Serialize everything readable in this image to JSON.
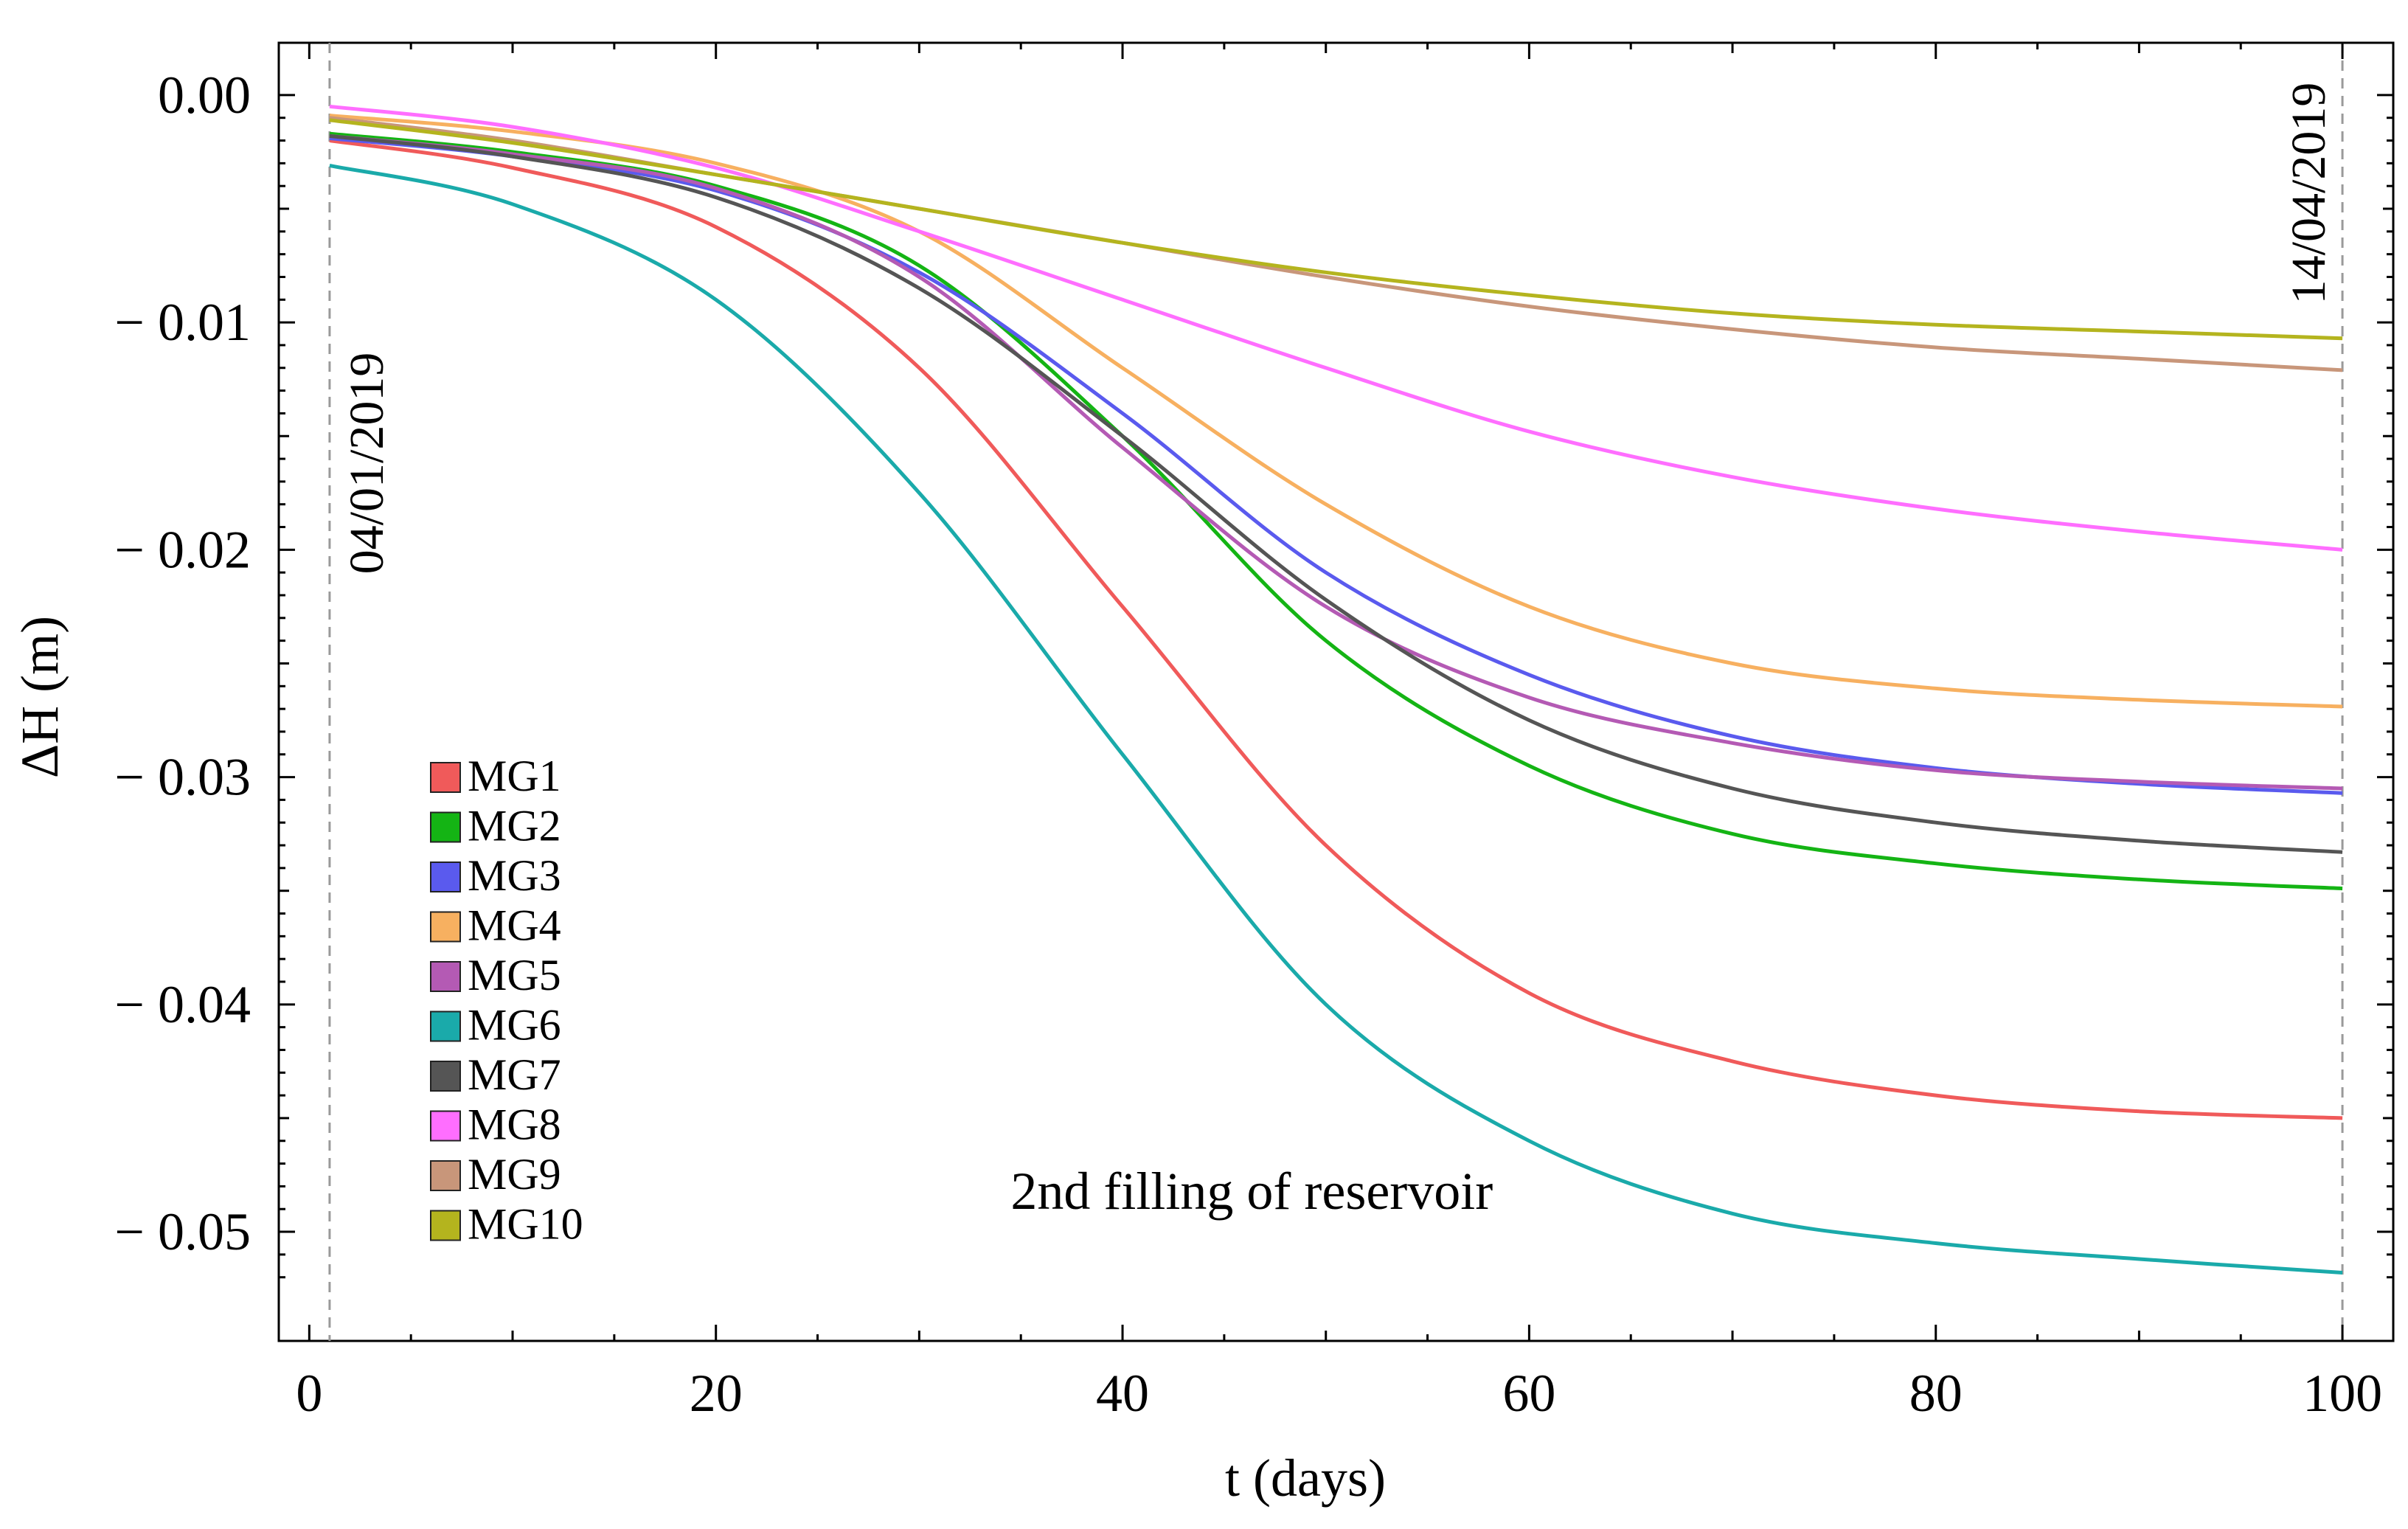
{
  "chart_data": {
    "type": "line",
    "title": "",
    "xlabel": "t (days)",
    "ylabel": "ΔH (m)",
    "xlim": [
      -1.5,
      102.5
    ],
    "ylim": [
      -0.0548,
      0.0023
    ],
    "xticks": [
      0,
      20,
      40,
      60,
      80,
      100
    ],
    "xtick_labels": [
      "0",
      "20",
      "40",
      "60",
      "80",
      "100"
    ],
    "yticks": [
      0.0,
      -0.01,
      -0.02,
      -0.03,
      -0.04,
      -0.05
    ],
    "ytick_labels": [
      "0.00",
      "− 0.01",
      "− 0.02",
      "− 0.03",
      "− 0.04",
      "− 0.05"
    ],
    "grid": false,
    "legend_position": "lower-left",
    "x": [
      1,
      10,
      20,
      30,
      40,
      50,
      60,
      70,
      80,
      90,
      100
    ],
    "series": [
      {
        "name": "MG1",
        "color": "#f05a5a",
        "values": [
          -0.002,
          -0.0032,
          -0.0058,
          -0.012,
          -0.0225,
          -0.033,
          -0.0395,
          -0.0425,
          -0.044,
          -0.0447,
          -0.045
        ]
      },
      {
        "name": "MG2",
        "color": "#14b414",
        "values": [
          -0.0017,
          -0.0025,
          -0.004,
          -0.0075,
          -0.015,
          -0.024,
          -0.0295,
          -0.0325,
          -0.0338,
          -0.0345,
          -0.0349
        ]
      },
      {
        "name": "MG3",
        "color": "#5a5aee",
        "values": [
          -0.0019,
          -0.0027,
          -0.0042,
          -0.0078,
          -0.014,
          -0.021,
          -0.0255,
          -0.0282,
          -0.0296,
          -0.0303,
          -0.0307
        ]
      },
      {
        "name": "MG4",
        "color": "#f7b060",
        "values": [
          -0.0009,
          -0.0016,
          -0.003,
          -0.006,
          -0.012,
          -0.018,
          -0.0225,
          -0.025,
          -0.0261,
          -0.0266,
          -0.0269
        ]
      },
      {
        "name": "MG5",
        "color": "#b45ab4",
        "values": [
          -0.0018,
          -0.0026,
          -0.0041,
          -0.008,
          -0.0155,
          -0.0225,
          -0.0265,
          -0.0285,
          -0.0297,
          -0.0302,
          -0.0305
        ]
      },
      {
        "name": "MG6",
        "color": "#1aaaaa",
        "values": [
          -0.0031,
          -0.0048,
          -0.009,
          -0.0175,
          -0.029,
          -0.04,
          -0.046,
          -0.0492,
          -0.0505,
          -0.0512,
          -0.0518
        ]
      },
      {
        "name": "MG7",
        "color": "#555555",
        "values": [
          -0.0018,
          -0.0027,
          -0.0045,
          -0.0085,
          -0.015,
          -0.0222,
          -0.0275,
          -0.0305,
          -0.032,
          -0.0328,
          -0.0333
        ]
      },
      {
        "name": "MG8",
        "color": "#ff6eff",
        "values": [
          -0.0005,
          -0.0014,
          -0.0032,
          -0.006,
          -0.009,
          -0.012,
          -0.0148,
          -0.0168,
          -0.0182,
          -0.0192,
          -0.02
        ]
      },
      {
        "name": "MG9",
        "color": "#c8967a",
        "values": [
          -0.001,
          -0.002,
          -0.0035,
          -0.005,
          -0.0065,
          -0.008,
          -0.0093,
          -0.0103,
          -0.0111,
          -0.0116,
          -0.0121
        ]
      },
      {
        "name": "MG10",
        "color": "#b4b41e",
        "values": [
          -0.0011,
          -0.0021,
          -0.0035,
          -0.005,
          -0.0065,
          -0.0078,
          -0.0088,
          -0.0096,
          -0.0101,
          -0.0104,
          -0.0107
        ]
      }
    ],
    "vlines": [
      {
        "x": 1,
        "label": "04/01/2019"
      },
      {
        "x": 100,
        "label": "14/04/2019"
      }
    ],
    "annotations": [
      {
        "text": "2nd filling of reservoir",
        "x": 34.5,
        "y": -0.049
      }
    ]
  }
}
